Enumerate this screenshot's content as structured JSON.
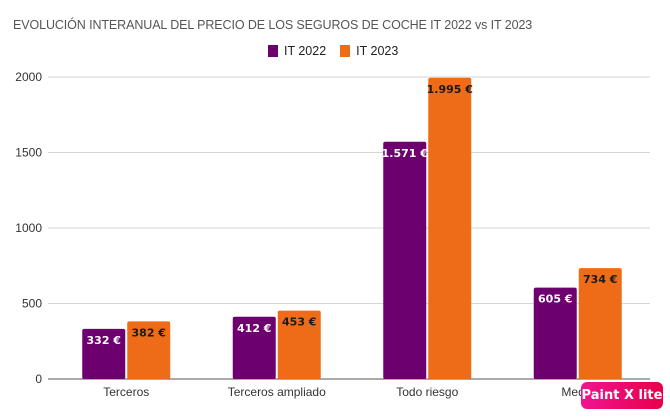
{
  "chart_data": {
    "type": "bar",
    "title": "EVOLUCIÓN INTERANUAL DEL PRECIO DE LOS SEGUROS DE COCHE IT 2022 vs IT 2023",
    "categories": [
      "Terceros",
      "Terceros ampliado",
      "Todo riesgo",
      "Media"
    ],
    "series": [
      {
        "name": "IT 2022",
        "color": "#6d006e",
        "values": [
          332,
          412,
          1571,
          605
        ],
        "labels": [
          "332 €",
          "412 €",
          "1.571 €",
          "605 €"
        ],
        "label_color": "#ffffff"
      },
      {
        "name": "IT 2023",
        "color": "#ee6c17",
        "values": [
          382,
          453,
          1995,
          734
        ],
        "labels": [
          "382 €",
          "453 €",
          "1.995 €",
          "734 €"
        ],
        "label_color": "#1a1a1a"
      }
    ],
    "xlabel": "",
    "ylabel": "",
    "ylim": [
      0,
      2000
    ],
    "yticks": [
      0,
      500,
      1000,
      1500,
      2000
    ],
    "grid": true,
    "legend_position": "top-center"
  },
  "watermark": "Paint X lite"
}
